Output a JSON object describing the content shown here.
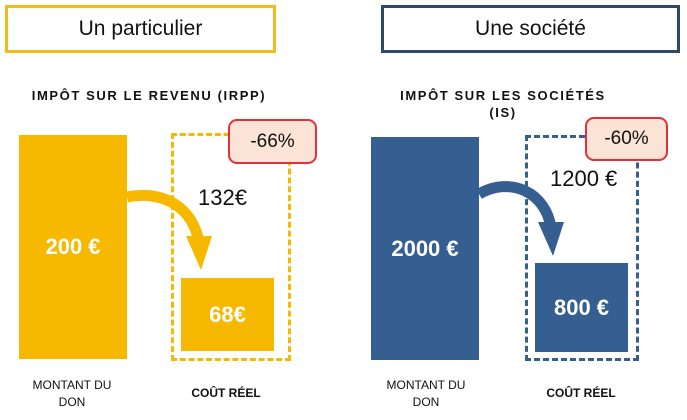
{
  "left": {
    "header": "Un particulier",
    "section_title": "IMPÔT SUR LE REVENU (IRPP)",
    "donation_value": "200 €",
    "discount_badge": "-66%",
    "tax_saving": "132€",
    "real_cost_value": "68€",
    "donation_label": "MONTANT DU DON",
    "real_cost_label": "COÛT RÉEL",
    "accent_color": "#F7B900"
  },
  "right": {
    "header": "Une société",
    "section_title_line1": "IMPÔT SUR LES SOCIÉTÉS",
    "section_title_line2": "(IS)",
    "donation_value": "2000 €",
    "discount_badge": "-60%",
    "tax_saving": "1200 €",
    "real_cost_value": "800 €",
    "donation_label": "MONTANT DU DON",
    "real_cost_label": "COÛT RÉEL",
    "accent_color": "#355E91"
  },
  "badge_border_color": "#E5303A"
}
